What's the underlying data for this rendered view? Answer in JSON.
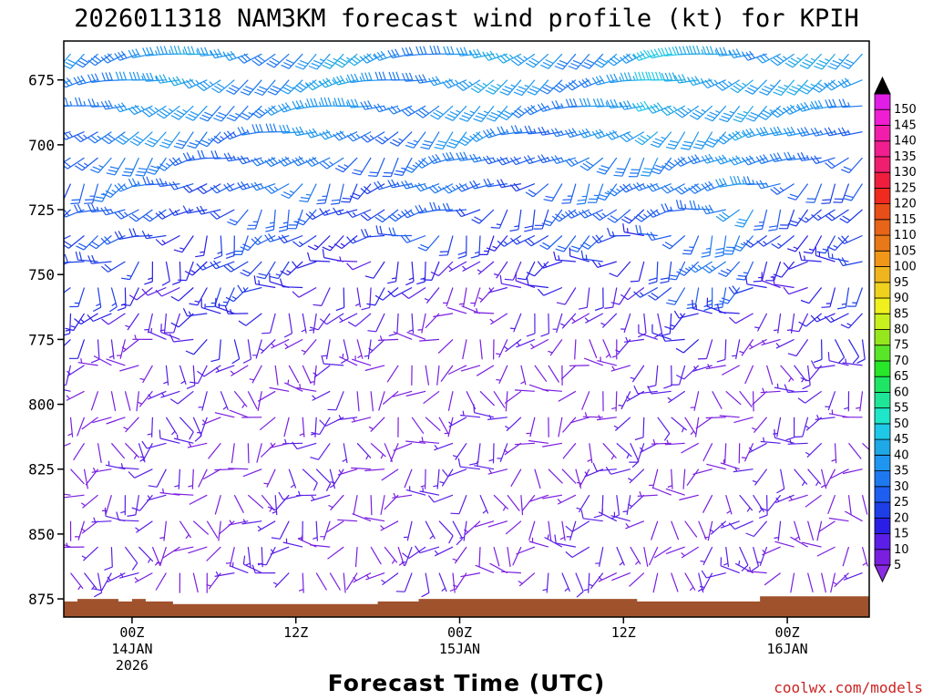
{
  "chart_data": {
    "type": "wind-barb-profile",
    "title": "2026011318 NAM3KM forecast wind profile (kt) for KPIH",
    "xlabel": "Forecast Time (UTC)",
    "credit": "coolwx.com/models",
    "y_ticks": [
      675,
      700,
      725,
      750,
      775,
      800,
      825,
      850,
      875
    ],
    "ylim": [
      882,
      660
    ],
    "xlim_hours_from_init": [
      1,
      60
    ],
    "x_ticks": [
      {
        "hours": 6,
        "line1": "00Z",
        "line2": "14JAN",
        "line3": "2026"
      },
      {
        "hours": 18,
        "line1": "12Z",
        "line2": "",
        "line3": ""
      },
      {
        "hours": 30,
        "line1": "00Z",
        "line2": "15JAN",
        "line3": ""
      },
      {
        "hours": 42,
        "line1": "12Z",
        "line2": "",
        "line3": ""
      },
      {
        "hours": 54,
        "line1": "00Z",
        "line2": "16JAN",
        "line3": ""
      }
    ],
    "pressure_levels": [
      665,
      675,
      685,
      695,
      705,
      715,
      725,
      735,
      745,
      755,
      765,
      775,
      785,
      795,
      805,
      815,
      825,
      835,
      845,
      855,
      865,
      875
    ],
    "surface_pressure": [
      [
        1,
        876
      ],
      [
        2,
        875
      ],
      [
        5,
        876
      ],
      [
        6,
        875
      ],
      [
        7,
        876
      ],
      [
        9,
        877
      ],
      [
        14,
        877
      ],
      [
        22,
        877
      ],
      [
        24,
        876
      ],
      [
        27,
        875
      ],
      [
        36,
        875
      ],
      [
        43,
        876
      ],
      [
        48,
        876
      ],
      [
        52,
        874
      ],
      [
        60,
        874
      ]
    ],
    "colorbar": {
      "levels": [
        5,
        10,
        15,
        20,
        25,
        30,
        35,
        40,
        45,
        50,
        55,
        60,
        65,
        70,
        75,
        80,
        85,
        90,
        95,
        100,
        105,
        110,
        115,
        120,
        125,
        130,
        135,
        140,
        145,
        150
      ],
      "colors": [
        "#7a1ee0",
        "#5a1ee6",
        "#2a1ee6",
        "#1e3ee8",
        "#1e5ef0",
        "#1e78f0",
        "#1e96f0",
        "#1ea8e6",
        "#1ec8e6",
        "#1ee6c8",
        "#1ee696",
        "#1ee664",
        "#28e628",
        "#5ae628",
        "#96e61e",
        "#c8f01e",
        "#f0f01e",
        "#f0d21e",
        "#f0b41e",
        "#f09618",
        "#e87818",
        "#e86418",
        "#e84e18",
        "#f02a1e",
        "#f01e3e",
        "#f01e6e",
        "#f01e8e",
        "#f01eaa",
        "#f01ed2",
        "#e11ee6"
      ],
      "over_color": "#000000",
      "under_color": "#8a2be2"
    }
  },
  "colors": {
    "ground": "#a0522d",
    "frame": "#000000"
  }
}
